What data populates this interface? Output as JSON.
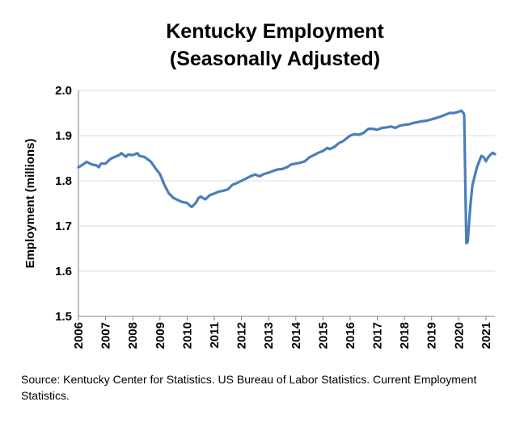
{
  "chart_data": {
    "type": "line",
    "title": [
      "Kentucky Employment",
      "(Seasonally Adjusted)"
    ],
    "ylabel": "Employment (millions)",
    "xlabel": "",
    "ylim": [
      1.5,
      2.0
    ],
    "xlim": [
      2006,
      2021.33
    ],
    "yticks": [
      "1.5",
      "1.6",
      "1.7",
      "1.8",
      "1.9",
      "2.0"
    ],
    "xticks": [
      "2006",
      "2007",
      "2008",
      "2009",
      "2010",
      "2011",
      "2012",
      "2013",
      "2014",
      "2015",
      "2016",
      "2017",
      "2018",
      "2019",
      "2020",
      "2021"
    ],
    "grid": "horizontal",
    "color": "#4a7ebb",
    "series": [
      {
        "points": [
          [
            2006.0,
            1.83
          ],
          [
            2006.17,
            1.836
          ],
          [
            2006.3,
            1.842
          ],
          [
            2006.5,
            1.836
          ],
          [
            2006.67,
            1.834
          ],
          [
            2006.75,
            1.83
          ],
          [
            2006.83,
            1.838
          ],
          [
            2007.0,
            1.838
          ],
          [
            2007.17,
            1.848
          ],
          [
            2007.3,
            1.852
          ],
          [
            2007.5,
            1.857
          ],
          [
            2007.58,
            1.861
          ],
          [
            2007.75,
            1.853
          ],
          [
            2007.83,
            1.858
          ],
          [
            2008.0,
            1.857
          ],
          [
            2008.17,
            1.861
          ],
          [
            2008.25,
            1.855
          ],
          [
            2008.42,
            1.853
          ],
          [
            2008.58,
            1.846
          ],
          [
            2008.67,
            1.842
          ],
          [
            2008.83,
            1.828
          ],
          [
            2009.0,
            1.815
          ],
          [
            2009.17,
            1.79
          ],
          [
            2009.33,
            1.772
          ],
          [
            2009.5,
            1.762
          ],
          [
            2009.67,
            1.757
          ],
          [
            2009.83,
            1.753
          ],
          [
            2010.0,
            1.751
          ],
          [
            2010.08,
            1.746
          ],
          [
            2010.17,
            1.742
          ],
          [
            2010.33,
            1.752
          ],
          [
            2010.42,
            1.762
          ],
          [
            2010.5,
            1.765
          ],
          [
            2010.67,
            1.759
          ],
          [
            2010.83,
            1.768
          ],
          [
            2011.0,
            1.772
          ],
          [
            2011.17,
            1.776
          ],
          [
            2011.33,
            1.778
          ],
          [
            2011.5,
            1.781
          ],
          [
            2011.67,
            1.791
          ],
          [
            2011.83,
            1.795
          ],
          [
            2012.0,
            1.8
          ],
          [
            2012.17,
            1.805
          ],
          [
            2012.33,
            1.81
          ],
          [
            2012.5,
            1.814
          ],
          [
            2012.67,
            1.81
          ],
          [
            2012.83,
            1.815
          ],
          [
            2013.0,
            1.818
          ],
          [
            2013.17,
            1.822
          ],
          [
            2013.33,
            1.825
          ],
          [
            2013.5,
            1.826
          ],
          [
            2013.67,
            1.83
          ],
          [
            2013.83,
            1.836
          ],
          [
            2014.0,
            1.838
          ],
          [
            2014.17,
            1.84
          ],
          [
            2014.33,
            1.843
          ],
          [
            2014.5,
            1.852
          ],
          [
            2014.67,
            1.857
          ],
          [
            2014.83,
            1.862
          ],
          [
            2015.0,
            1.866
          ],
          [
            2015.17,
            1.873
          ],
          [
            2015.25,
            1.87
          ],
          [
            2015.42,
            1.875
          ],
          [
            2015.58,
            1.883
          ],
          [
            2015.75,
            1.888
          ],
          [
            2015.83,
            1.892
          ],
          [
            2016.0,
            1.9
          ],
          [
            2016.17,
            1.903
          ],
          [
            2016.33,
            1.902
          ],
          [
            2016.5,
            1.906
          ],
          [
            2016.67,
            1.915
          ],
          [
            2016.83,
            1.915
          ],
          [
            2017.0,
            1.913
          ],
          [
            2017.17,
            1.917
          ],
          [
            2017.33,
            1.918
          ],
          [
            2017.5,
            1.92
          ],
          [
            2017.67,
            1.917
          ],
          [
            2017.83,
            1.922
          ],
          [
            2018.0,
            1.924
          ],
          [
            2018.17,
            1.925
          ],
          [
            2018.33,
            1.928
          ],
          [
            2018.5,
            1.93
          ],
          [
            2018.67,
            1.932
          ],
          [
            2018.83,
            1.933
          ],
          [
            2019.0,
            1.936
          ],
          [
            2019.17,
            1.939
          ],
          [
            2019.33,
            1.942
          ],
          [
            2019.5,
            1.946
          ],
          [
            2019.67,
            1.95
          ],
          [
            2019.83,
            1.95
          ],
          [
            2020.0,
            1.953
          ],
          [
            2020.1,
            1.955
          ],
          [
            2020.17,
            1.95
          ],
          [
            2020.2,
            1.945
          ],
          [
            2020.25,
            1.76
          ],
          [
            2020.28,
            1.662
          ],
          [
            2020.33,
            1.665
          ],
          [
            2020.42,
            1.74
          ],
          [
            2020.5,
            1.79
          ],
          [
            2020.67,
            1.83
          ],
          [
            2020.83,
            1.855
          ],
          [
            2020.92,
            1.852
          ],
          [
            2021.0,
            1.843
          ],
          [
            2021.08,
            1.852
          ],
          [
            2021.17,
            1.858
          ],
          [
            2021.25,
            1.862
          ],
          [
            2021.33,
            1.859
          ]
        ]
      }
    ]
  },
  "source_text": "Source: Kentucky Center for Statistics. US Bureau of Labor Statistics. Current Employment Statistics."
}
